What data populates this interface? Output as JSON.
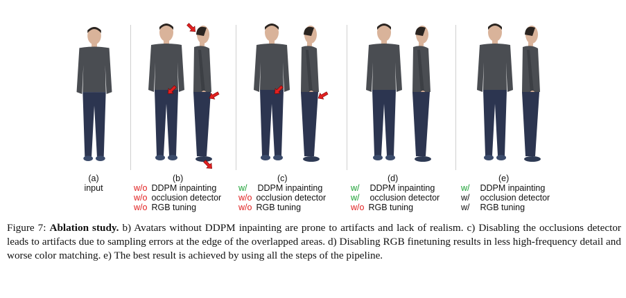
{
  "figure": {
    "columns": [
      {
        "id": "a",
        "letter": "(a)",
        "sub": "input",
        "conditions": []
      },
      {
        "id": "b",
        "letter": "(b)",
        "conditions": [
          {
            "mark": "w/o",
            "kind": "neg",
            "text": "DDPM inpainting"
          },
          {
            "mark": "w/o",
            "kind": "neg",
            "text": "occlusion detector"
          },
          {
            "mark": "w/o",
            "kind": "neg",
            "text": "RGB tuning"
          }
        ]
      },
      {
        "id": "c",
        "letter": "(c)",
        "conditions": [
          {
            "mark": "w/",
            "kind": "pos",
            "text": "DDPM inpainting"
          },
          {
            "mark": "w/o",
            "kind": "neg",
            "text": "occlusion detector"
          },
          {
            "mark": "w/o",
            "kind": "neg",
            "text": "RGB tuning"
          }
        ]
      },
      {
        "id": "d",
        "letter": "(d)",
        "conditions": [
          {
            "mark": "w/",
            "kind": "pos",
            "text": "DDPM inpainting"
          },
          {
            "mark": "w/",
            "kind": "pos",
            "text": "occlusion detector"
          },
          {
            "mark": "w/o",
            "kind": "neg",
            "text": "RGB tuning"
          }
        ]
      },
      {
        "id": "e",
        "letter": "(e)",
        "conditions": [
          {
            "mark": "w/",
            "kind": "pos",
            "text": "DDPM inpainting"
          },
          {
            "mark": "w/",
            "kind": "plain",
            "text": "occlusion detector"
          },
          {
            "mark": "w/",
            "kind": "plain",
            "text": "RGB tuning"
          }
        ]
      }
    ],
    "colors": {
      "neg": "#e02020",
      "pos": "#1aa033",
      "sweater": "#4a4d52",
      "jeans": "#2c3550",
      "skin": "#d9b39a",
      "hair": "#2a2420",
      "arrow": "#e02020"
    }
  },
  "caption": {
    "prefix": "Figure 7: ",
    "bold": "Ablation study.",
    "body": " b) Avatars without DDPM inpainting are prone to artifacts and lack of realism. c) Disabling the occlusions detector leads to artifacts due to sampling errors at the edge of the overlapped areas. d) Disabling RGB finetuning results in less high-frequency detail and worse color matching. e) The best result is achieved by using all the steps of the pipeline."
  }
}
